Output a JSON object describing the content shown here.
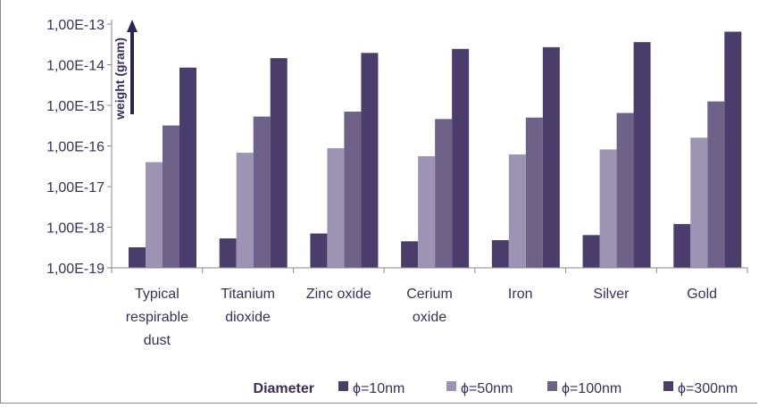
{
  "chart_data": {
    "type": "bar",
    "yscale": "log",
    "ylabel": "weight (gram)",
    "ylim": [
      1e-19,
      1e-13
    ],
    "ytick_values": [
      1e-19,
      1e-18,
      1e-17,
      1e-16,
      1e-15,
      1e-14,
      1e-13
    ],
    "ytick_labels": [
      "1,00E-19",
      "1,00E-18",
      "1,00E-17",
      "1,00E-16",
      "1,00E-15",
      "1,00E-14",
      "1,00E-13"
    ],
    "categories": [
      [
        "Typical",
        "respirable",
        "dust"
      ],
      [
        "Titanium",
        "dioxide"
      ],
      [
        "Zinc oxide"
      ],
      [
        "Cerium",
        "oxide"
      ],
      [
        "Iron"
      ],
      [
        "Silver"
      ],
      [
        "Gold"
      ]
    ],
    "legend_title": "Diameter",
    "grid": false,
    "legend_position": "bottom",
    "series": [
      {
        "name": "ϕ=10nm",
        "color": "#4a3d6b",
        "values": [
          3.2e-19,
          5.3e-19,
          7e-19,
          4.5e-19,
          4.8e-19,
          6.4e-19,
          1.2e-18
        ]
      },
      {
        "name": "ϕ=50nm",
        "color": "#9d93b3",
        "values": [
          4e-17,
          6.8e-17,
          8.8e-17,
          5.6e-17,
          6.2e-17,
          8.2e-17,
          1.6e-16
        ]
      },
      {
        "name": "ϕ=100nm",
        "color": "#6e6288",
        "values": [
          3.2e-16,
          5.3e-16,
          7e-16,
          4.6e-16,
          5e-16,
          6.5e-16,
          1.25e-15
        ]
      },
      {
        "name": "ϕ=300nm",
        "color": "#4a3d6b",
        "values": [
          8.5e-15,
          1.45e-14,
          1.95e-14,
          2.45e-14,
          2.7e-14,
          3.6e-14,
          6.5e-14
        ]
      }
    ]
  }
}
